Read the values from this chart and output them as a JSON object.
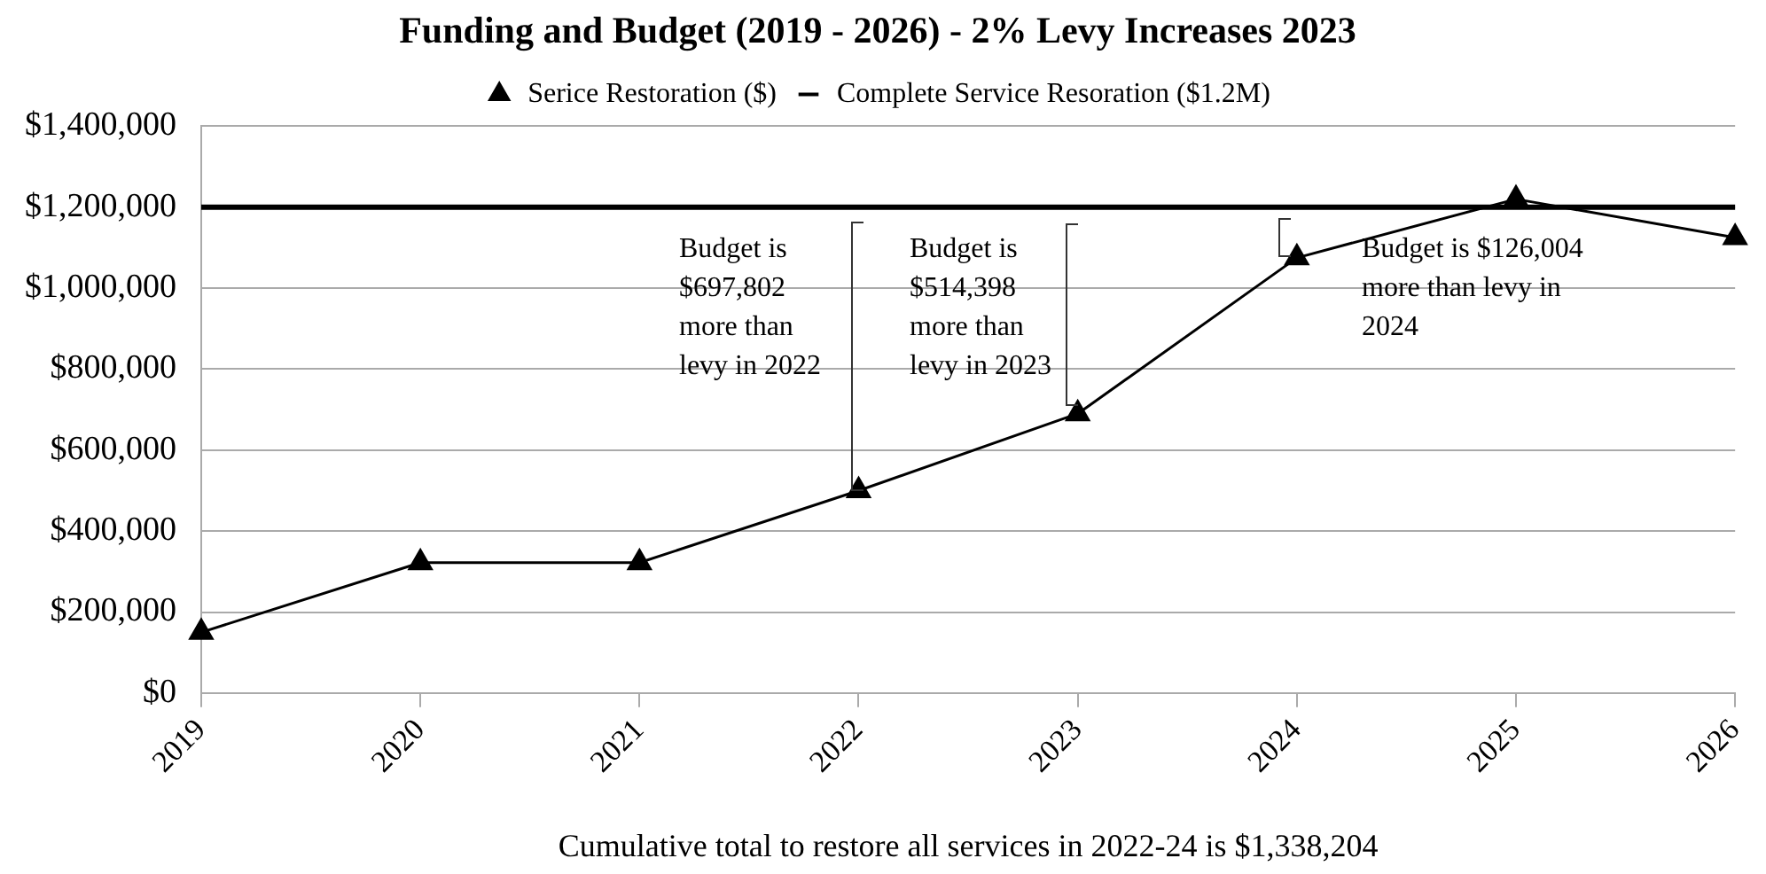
{
  "chart_data": {
    "type": "line",
    "title": "Funding and Budget (2019 - 2026) - 2% Levy Increases 2023",
    "xlabel": "Cumulative total to restore all services in 2022-24 is $1,338,204",
    "categories": [
      "2019",
      "2020",
      "2021",
      "2022",
      "2023",
      "2024",
      "2025",
      "2026"
    ],
    "series": [
      {
        "name": "Serice Restoration ($)",
        "color": "#000000",
        "marker": "triangle",
        "values": [
          150000,
          322000,
          322000,
          500000,
          690000,
          1075000,
          1220000,
          1125000
        ]
      },
      {
        "name": "Complete Service Resoration ($1.2M)",
        "color": "#000000",
        "marker": "none",
        "values": [
          1200000,
          1200000,
          1200000,
          1200000,
          1200000,
          1200000,
          1200000,
          1200000
        ]
      }
    ],
    "ylim": [
      0,
      1400000
    ],
    "yticks": [
      {
        "value": 0,
        "label": "$0"
      },
      {
        "value": 200000,
        "label": "$200,000"
      },
      {
        "value": 400000,
        "label": "$400,000"
      },
      {
        "value": 600000,
        "label": "$600,000"
      },
      {
        "value": 800000,
        "label": "$800,000"
      },
      {
        "value": 1000000,
        "label": "$1,000,000"
      },
      {
        "value": 1200000,
        "label": "$1,200,000"
      },
      {
        "value": 1400000,
        "label": "$1,400,000"
      }
    ],
    "grid": "y",
    "legend": "top",
    "annotations": [
      "Budget is $697,802 more than levy in 2022",
      "Budget is $514,398 more than levy in 2023",
      "Budget is $126,004 more than levy in 2024"
    ]
  }
}
